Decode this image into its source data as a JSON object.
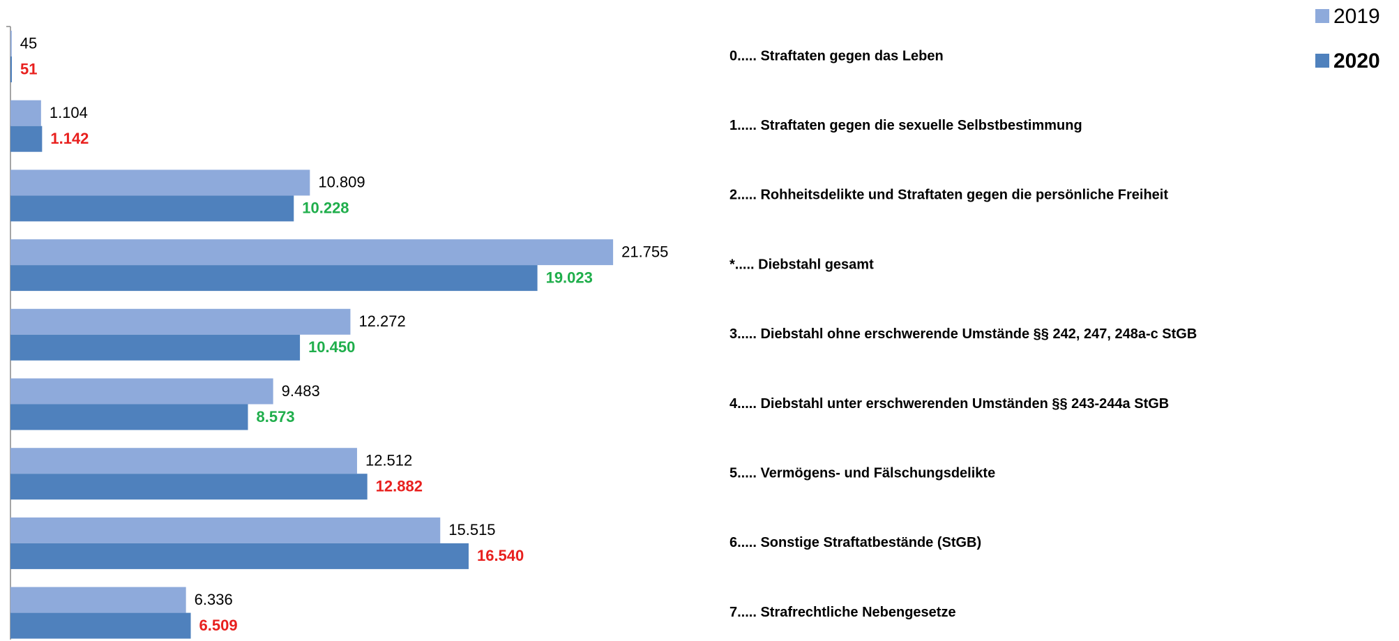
{
  "chart_data": {
    "type": "hbar",
    "categories": [
      "0..... Straftaten gegen das Leben",
      "1..... Straftaten gegen die sexuelle Selbstbestimmung",
      "2..... Rohheitsdelikte und Straftaten gegen die persönliche Freiheit",
      "*..... Diebstahl gesamt",
      "3..... Diebstahl ohne erschwerende Umstände §§ 242, 247, 248a-c StGB",
      "4..... Diebstahl unter erschwerenden Umständen §§ 243-244a StGB",
      "5..... Vermögens- und Fälschungsdelikte",
      "6..... Sonstige Straftatbestände (StGB)",
      "7..... Strafrechtliche Nebengesetze"
    ],
    "series": [
      {
        "name": "2019",
        "color": "#8eaadb",
        "values": [
          45,
          1104,
          10809,
          21755,
          12272,
          9483,
          12512,
          15515,
          6336
        ],
        "value_labels": [
          "45",
          "1.104",
          "10.809",
          "21.755",
          "12.272",
          "9.483",
          "12.512",
          "15.515",
          "6.336"
        ],
        "value_label_colors": [
          "#000000",
          "#000000",
          "#000000",
          "#000000",
          "#000000",
          "#000000",
          "#000000",
          "#000000",
          "#000000"
        ]
      },
      {
        "name": "2020",
        "color": "#4f81bd",
        "values": [
          51,
          1142,
          10228,
          19023,
          10450,
          8573,
          12882,
          16540,
          6509
        ],
        "value_labels": [
          "51",
          "1.142",
          "10.228",
          "19.023",
          "10.450",
          "8.573",
          "12.882",
          "16.540",
          "6.509"
        ],
        "value_label_colors": [
          "#e8201e",
          "#e8201e",
          "#1fae4b",
          "#1fae4b",
          "#1fae4b",
          "#1fae4b",
          "#e8201e",
          "#e8201e",
          "#e8201e"
        ]
      }
    ],
    "xlim": [
      0,
      25000
    ],
    "legend": "top-right"
  }
}
